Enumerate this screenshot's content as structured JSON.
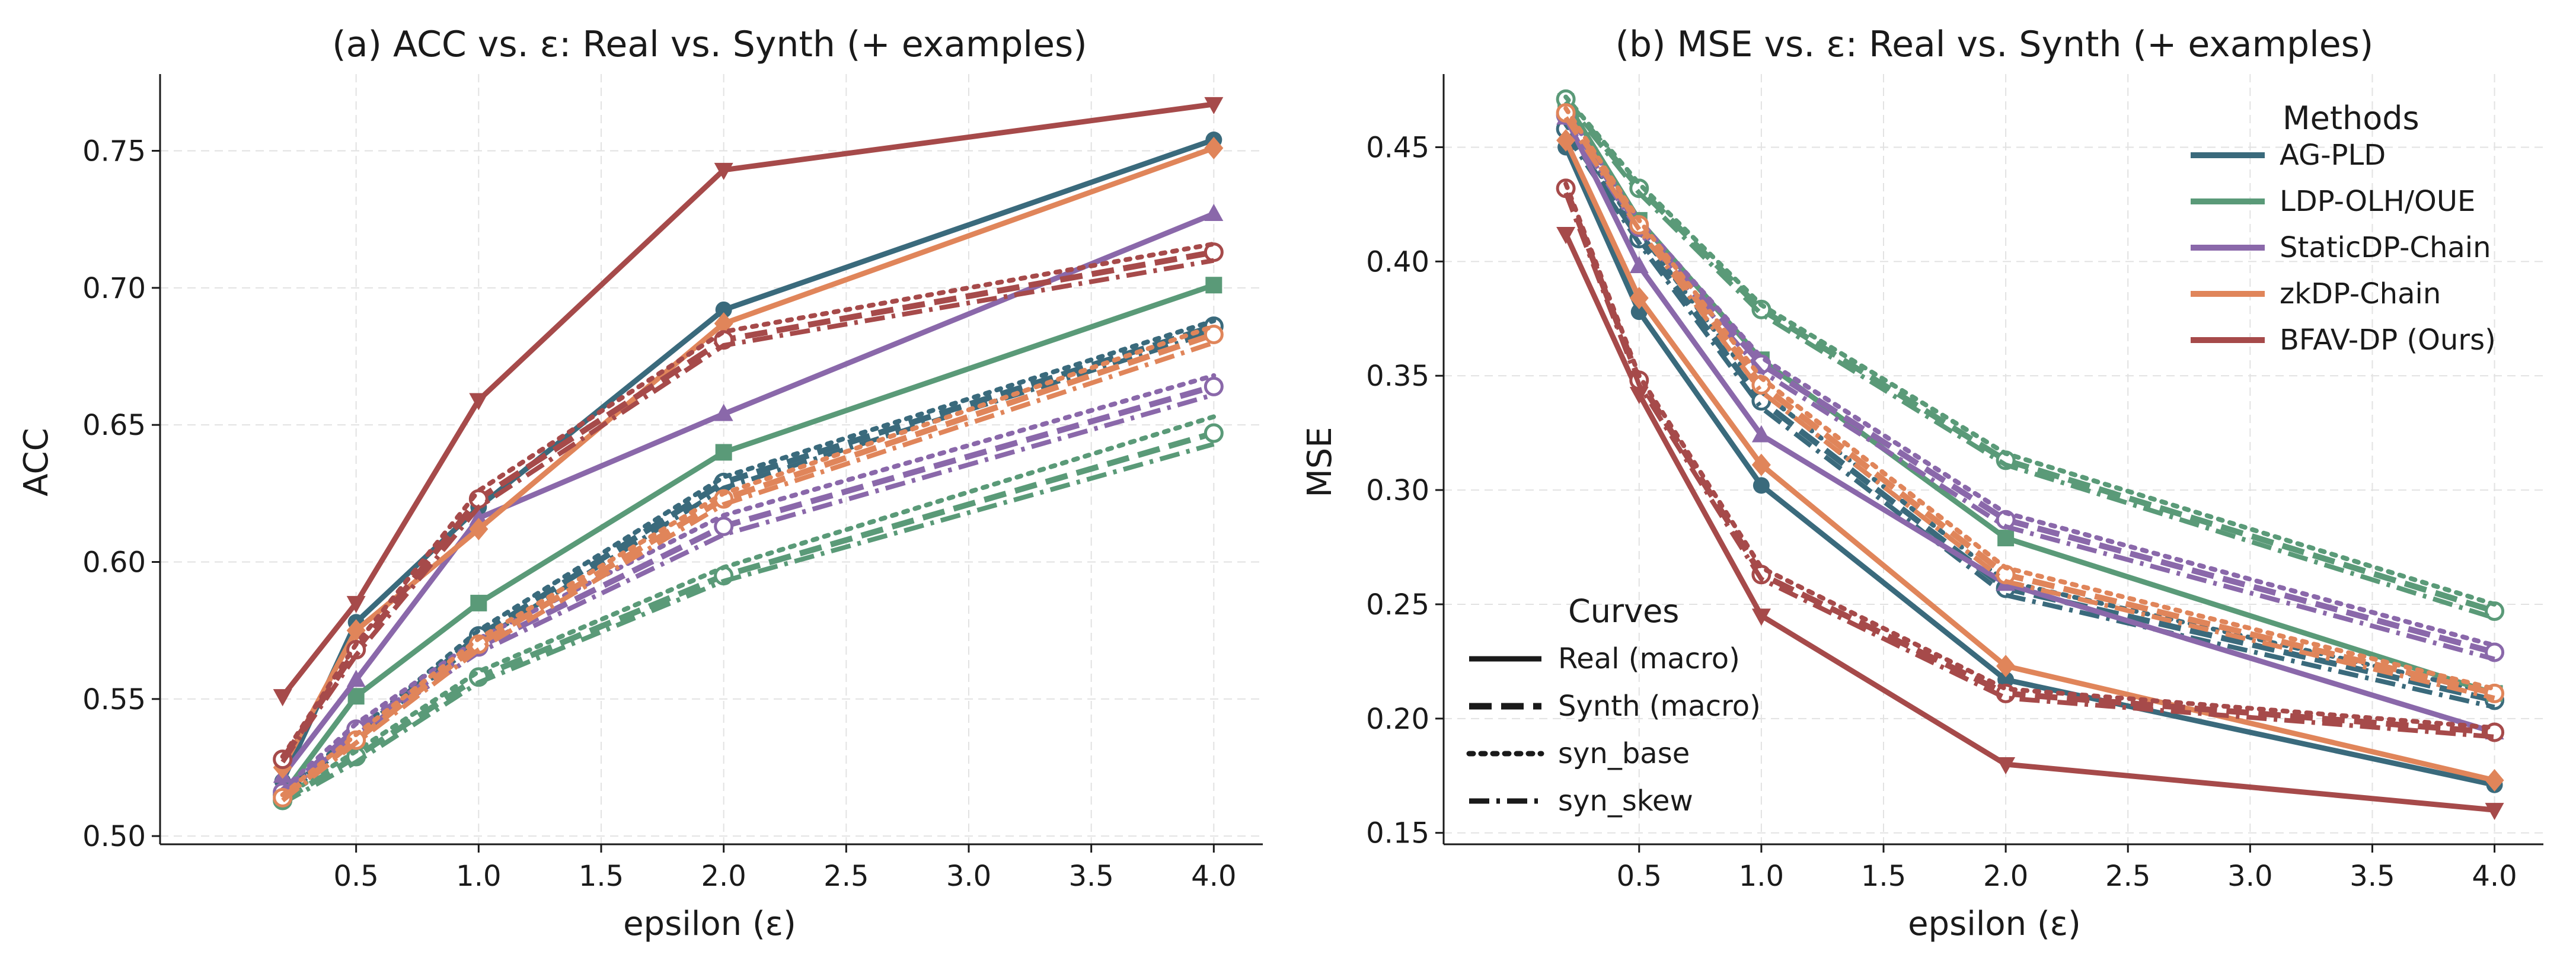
{
  "colors": {
    "AG-PLD": "#3a6a7c",
    "LDP-OLH/OUE": "#5a9a78",
    "StaticDP-Chain": "#8a68aa",
    "zkDP-Chain": "#e0855a",
    "BFAV-DP (Ours)": "#a64a4a"
  },
  "legend_methods": {
    "title": "Methods",
    "items": [
      "AG-PLD",
      "LDP-OLH/OUE",
      "StaticDP-Chain",
      "zkDP-Chain",
      "BFAV-DP (Ours)"
    ]
  },
  "legend_curves": {
    "title": "Curves",
    "items": [
      {
        "label": "Real (macro)",
        "style": "solid"
      },
      {
        "label": "Synth (macro)",
        "style": "dashed"
      },
      {
        "label": "syn_base",
        "style": "dotted"
      },
      {
        "label": "syn_skew",
        "style": "dashdot"
      }
    ]
  },
  "chart_data": [
    {
      "type": "line",
      "title": "(a) ACC vs. ε: Real vs. Synth (+ examples)",
      "xlabel": "epsilon (ε)",
      "ylabel": "ACC",
      "x": [
        0.2,
        0.5,
        1.0,
        2.0,
        4.0
      ],
      "xlim": [
        -0.3,
        4.2
      ],
      "ylim": [
        0.497,
        0.778
      ],
      "xticks": [
        0.5,
        1.0,
        1.5,
        2.0,
        2.5,
        3.0,
        3.5,
        4.0
      ],
      "xtick_labels": [
        "0.5",
        "1.0",
        "1.5",
        "2.0",
        "2.5",
        "3.0",
        "3.5",
        "4.0"
      ],
      "yticks": [
        0.5,
        0.55,
        0.6,
        0.65,
        0.7,
        0.75
      ],
      "ytick_labels": [
        "0.50",
        "0.55",
        "0.60",
        "0.65",
        "0.70",
        "0.75"
      ],
      "grid": true,
      "series": [
        {
          "name": "AG-PLD",
          "curve": "Real (macro)",
          "values": [
            0.52,
            0.578,
            0.62,
            0.692,
            0.754
          ],
          "marker": "circle"
        },
        {
          "name": "AG-PLD",
          "curve": "Synth (macro)",
          "values": [
            0.515,
            0.537,
            0.573,
            0.629,
            0.686
          ],
          "marker": "open"
        },
        {
          "name": "AG-PLD",
          "curve": "syn_base",
          "values": [
            0.516,
            0.538,
            0.575,
            0.631,
            0.688
          ],
          "marker": "none"
        },
        {
          "name": "AG-PLD",
          "curve": "syn_skew",
          "values": [
            0.514,
            0.536,
            0.571,
            0.627,
            0.684
          ],
          "marker": "none"
        },
        {
          "name": "LDP-OLH/OUE",
          "curve": "Real (macro)",
          "values": [
            0.515,
            0.551,
            0.585,
            0.64,
            0.701
          ],
          "marker": "square"
        },
        {
          "name": "LDP-OLH/OUE",
          "curve": "Synth (macro)",
          "values": [
            0.513,
            0.529,
            0.558,
            0.595,
            0.647
          ],
          "marker": "open"
        },
        {
          "name": "LDP-OLH/OUE",
          "curve": "syn_base",
          "values": [
            0.514,
            0.531,
            0.56,
            0.598,
            0.653
          ],
          "marker": "none"
        },
        {
          "name": "LDP-OLH/OUE",
          "curve": "syn_skew",
          "values": [
            0.512,
            0.527,
            0.556,
            0.593,
            0.643
          ],
          "marker": "none"
        },
        {
          "name": "StaticDP-Chain",
          "curve": "Real (macro)",
          "values": [
            0.522,
            0.557,
            0.616,
            0.654,
            0.727
          ],
          "marker": "triangle-up"
        },
        {
          "name": "StaticDP-Chain",
          "curve": "Synth (macro)",
          "values": [
            0.516,
            0.539,
            0.569,
            0.613,
            0.664
          ],
          "marker": "open"
        },
        {
          "name": "StaticDP-Chain",
          "curve": "syn_base",
          "values": [
            0.517,
            0.541,
            0.572,
            0.617,
            0.668
          ],
          "marker": "none"
        },
        {
          "name": "StaticDP-Chain",
          "curve": "syn_skew",
          "values": [
            0.515,
            0.537,
            0.567,
            0.61,
            0.661
          ],
          "marker": "none"
        },
        {
          "name": "zkDP-Chain",
          "curve": "Real (macro)",
          "values": [
            0.525,
            0.575,
            0.612,
            0.687,
            0.751
          ],
          "marker": "diamond"
        },
        {
          "name": "zkDP-Chain",
          "curve": "Synth (macro)",
          "values": [
            0.514,
            0.535,
            0.57,
            0.623,
            0.683
          ],
          "marker": "open"
        },
        {
          "name": "zkDP-Chain",
          "curve": "syn_base",
          "values": [
            0.515,
            0.537,
            0.572,
            0.625,
            0.686
          ],
          "marker": "none"
        },
        {
          "name": "zkDP-Chain",
          "curve": "syn_skew",
          "values": [
            0.513,
            0.534,
            0.568,
            0.621,
            0.68
          ],
          "marker": "none"
        },
        {
          "name": "BFAV-DP (Ours)",
          "curve": "Real (macro)",
          "values": [
            0.551,
            0.585,
            0.659,
            0.743,
            0.767
          ],
          "marker": "triangle-down"
        },
        {
          "name": "BFAV-DP (Ours)",
          "curve": "Synth (macro)",
          "values": [
            0.528,
            0.568,
            0.623,
            0.681,
            0.713
          ],
          "marker": "open"
        },
        {
          "name": "BFAV-DP (Ours)",
          "curve": "syn_base",
          "values": [
            0.529,
            0.57,
            0.626,
            0.684,
            0.716
          ],
          "marker": "none"
        },
        {
          "name": "BFAV-DP (Ours)",
          "curve": "syn_skew",
          "values": [
            0.527,
            0.566,
            0.62,
            0.679,
            0.71
          ],
          "marker": "none"
        }
      ]
    },
    {
      "type": "line",
      "title": "(b) MSE vs. ε: Real vs. Synth (+ examples)",
      "xlabel": "epsilon (ε)",
      "ylabel": "MSE",
      "x": [
        0.2,
        0.5,
        1.0,
        2.0,
        4.0
      ],
      "xlim": [
        -0.3,
        4.2
      ],
      "ylim": [
        0.145,
        0.482
      ],
      "xticks": [
        0.5,
        1.0,
        1.5,
        2.0,
        2.5,
        3.0,
        3.5,
        4.0
      ],
      "xtick_labels": [
        "0.5",
        "1.0",
        "1.5",
        "2.0",
        "2.5",
        "3.0",
        "3.5",
        "4.0"
      ],
      "yticks": [
        0.15,
        0.2,
        0.25,
        0.3,
        0.35,
        0.4,
        0.45
      ],
      "ytick_labels": [
        "0.15",
        "0.20",
        "0.25",
        "0.30",
        "0.35",
        "0.40",
        "0.45"
      ],
      "grid": true,
      "series": [
        {
          "name": "AG-PLD",
          "curve": "Real (macro)",
          "values": [
            0.45,
            0.378,
            0.302,
            0.217,
            0.171
          ],
          "marker": "circle"
        },
        {
          "name": "AG-PLD",
          "curve": "Synth (macro)",
          "values": [
            0.458,
            0.41,
            0.339,
            0.257,
            0.208
          ],
          "marker": "open"
        },
        {
          "name": "AG-PLD",
          "curve": "syn_base",
          "values": [
            0.46,
            0.413,
            0.343,
            0.26,
            0.211
          ],
          "marker": "none"
        },
        {
          "name": "AG-PLD",
          "curve": "syn_skew",
          "values": [
            0.456,
            0.408,
            0.336,
            0.254,
            0.205
          ],
          "marker": "none"
        },
        {
          "name": "LDP-OLH/OUE",
          "curve": "Real (macro)",
          "values": [
            0.47,
            0.418,
            0.357,
            0.279,
            0.211
          ],
          "marker": "square"
        },
        {
          "name": "LDP-OLH/OUE",
          "curve": "Synth (macro)",
          "values": [
            0.471,
            0.432,
            0.379,
            0.313,
            0.247
          ],
          "marker": "open"
        },
        {
          "name": "LDP-OLH/OUE",
          "curve": "syn_base",
          "values": [
            0.472,
            0.434,
            0.381,
            0.316,
            0.25
          ],
          "marker": "none"
        },
        {
          "name": "LDP-OLH/OUE",
          "curve": "syn_skew",
          "values": [
            0.47,
            0.43,
            0.377,
            0.311,
            0.244
          ],
          "marker": "none"
        },
        {
          "name": "StaticDP-Chain",
          "curve": "Real (macro)",
          "values": [
            0.463,
            0.398,
            0.324,
            0.259,
            0.194
          ],
          "marker": "triangle-up"
        },
        {
          "name": "StaticDP-Chain",
          "curve": "Synth (macro)",
          "values": [
            0.464,
            0.415,
            0.355,
            0.287,
            0.229
          ],
          "marker": "open"
        },
        {
          "name": "StaticDP-Chain",
          "curve": "syn_base",
          "values": [
            0.466,
            0.418,
            0.358,
            0.29,
            0.232
          ],
          "marker": "none"
        },
        {
          "name": "StaticDP-Chain",
          "curve": "syn_skew",
          "values": [
            0.462,
            0.413,
            0.352,
            0.284,
            0.226
          ],
          "marker": "none"
        },
        {
          "name": "zkDP-Chain",
          "curve": "Real (macro)",
          "values": [
            0.453,
            0.384,
            0.311,
            0.223,
            0.173
          ],
          "marker": "diamond"
        },
        {
          "name": "zkDP-Chain",
          "curve": "Synth (macro)",
          "values": [
            0.465,
            0.416,
            0.346,
            0.263,
            0.211
          ],
          "marker": "open"
        },
        {
          "name": "zkDP-Chain",
          "curve": "syn_base",
          "values": [
            0.467,
            0.418,
            0.349,
            0.266,
            0.213
          ],
          "marker": "none"
        },
        {
          "name": "zkDP-Chain",
          "curve": "syn_skew",
          "values": [
            0.463,
            0.414,
            0.343,
            0.26,
            0.209
          ],
          "marker": "none"
        },
        {
          "name": "BFAV-DP (Ours)",
          "curve": "Real (macro)",
          "values": [
            0.412,
            0.342,
            0.245,
            0.18,
            0.16
          ],
          "marker": "triangle-down"
        },
        {
          "name": "BFAV-DP (Ours)",
          "curve": "Synth (macro)",
          "values": [
            0.432,
            0.348,
            0.263,
            0.211,
            0.194
          ],
          "marker": "open"
        },
        {
          "name": "BFAV-DP (Ours)",
          "curve": "syn_base",
          "values": [
            0.434,
            0.35,
            0.266,
            0.213,
            0.196
          ],
          "marker": "none"
        },
        {
          "name": "BFAV-DP (Ours)",
          "curve": "syn_skew",
          "values": [
            0.43,
            0.346,
            0.261,
            0.209,
            0.192
          ],
          "marker": "none"
        }
      ]
    }
  ]
}
